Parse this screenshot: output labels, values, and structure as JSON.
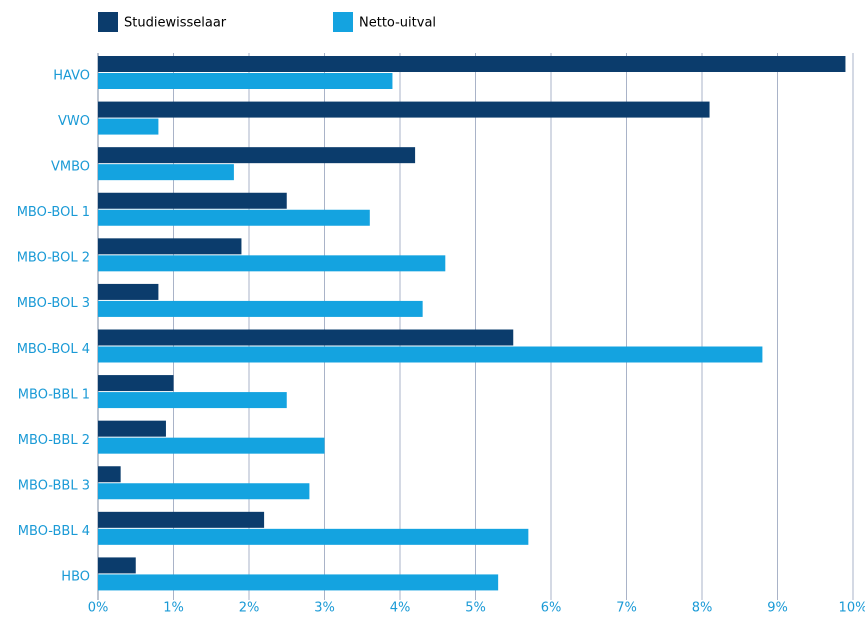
{
  "chart_data": {
    "type": "barh",
    "categories": [
      "HAVO",
      "VWO",
      "VMBO",
      "MBO-BOL 1",
      "MBO-BOL 2",
      "MBO-BOL 3",
      "MBO-BOL 4",
      "MBO-BBL 1",
      "MBO-BBL 2",
      "MBO-BBL 3",
      "MBO-BBL 4",
      "HBO"
    ],
    "series": [
      {
        "name": "Studiewisselaar",
        "color": "#0b3c6c",
        "values": [
          9.9,
          8.1,
          4.2,
          2.5,
          1.9,
          0.8,
          5.5,
          1.0,
          0.9,
          0.3,
          2.2,
          0.5
        ]
      },
      {
        "name": "Netto-uitval",
        "color": "#14a3e0",
        "values": [
          3.9,
          0.8,
          1.8,
          3.6,
          4.6,
          4.3,
          8.8,
          2.5,
          3.0,
          2.8,
          5.7,
          5.3
        ]
      }
    ],
    "xlim": [
      0,
      10
    ],
    "xticks": [
      {
        "value": 0,
        "label": "0%"
      },
      {
        "value": 1,
        "label": "1%"
      },
      {
        "value": 2,
        "label": "2%"
      },
      {
        "value": 3,
        "label": "3%"
      },
      {
        "value": 4,
        "label": "4%"
      },
      {
        "value": 5,
        "label": "5%"
      },
      {
        "value": 6,
        "label": "6%"
      },
      {
        "value": 7,
        "label": "7%"
      },
      {
        "value": 8,
        "label": "8%"
      },
      {
        "value": 9,
        "label": "9%"
      },
      {
        "value": 10,
        "label": "10%"
      }
    ],
    "grid": true,
    "legend": "top"
  }
}
